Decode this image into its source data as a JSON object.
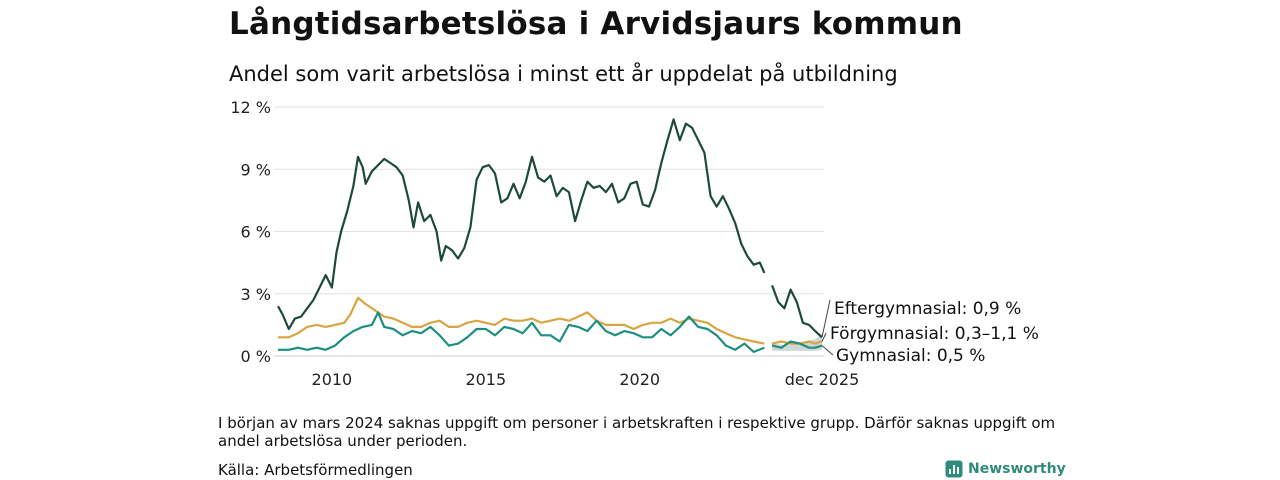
{
  "chart_data": {
    "type": "line",
    "title": "Långtidsarbetslösa i Arvidsjaurs kommun",
    "subtitle": "Andel som varit arbetslösa i minst ett år uppdelat på utbildning",
    "x_unit": "year",
    "xlim": [
      2008.25,
      2025.92
    ],
    "ylim": [
      0,
      12
    ],
    "y_ticks": [
      {
        "value": 0,
        "label": "0 %"
      },
      {
        "value": 3,
        "label": "3 %"
      },
      {
        "value": 6,
        "label": "6 %"
      },
      {
        "value": 9,
        "label": "9 %"
      },
      {
        "value": 12,
        "label": "12 %"
      }
    ],
    "x_ticks": [
      {
        "value": 2010,
        "label": "2010"
      },
      {
        "value": 2015,
        "label": "2015"
      },
      {
        "value": 2020,
        "label": "2020"
      },
      {
        "value": 2025.92,
        "label": "dec 2025"
      }
    ],
    "grid": "horizontal",
    "gap": [
      2024.17,
      2024.25
    ],
    "series": [
      {
        "name": "Eftergymnasial",
        "color": "#1e4a3e",
        "end_label": "Eftergymnasial: 0,9 %",
        "points": [
          [
            2008.25,
            2.4
          ],
          [
            2008.4,
            2.0
          ],
          [
            2008.6,
            1.3
          ],
          [
            2008.8,
            1.8
          ],
          [
            2009.0,
            1.9
          ],
          [
            2009.2,
            2.3
          ],
          [
            2009.4,
            2.7
          ],
          [
            2009.6,
            3.3
          ],
          [
            2009.8,
            3.9
          ],
          [
            2010.0,
            3.3
          ],
          [
            2010.15,
            5.0
          ],
          [
            2010.3,
            6.0
          ],
          [
            2010.5,
            7.0
          ],
          [
            2010.7,
            8.2
          ],
          [
            2010.85,
            9.6
          ],
          [
            2011.0,
            9.1
          ],
          [
            2011.1,
            8.3
          ],
          [
            2011.3,
            8.9
          ],
          [
            2011.5,
            9.2
          ],
          [
            2011.7,
            9.5
          ],
          [
            2011.9,
            9.3
          ],
          [
            2012.1,
            9.1
          ],
          [
            2012.3,
            8.7
          ],
          [
            2012.5,
            7.5
          ],
          [
            2012.65,
            6.2
          ],
          [
            2012.8,
            7.4
          ],
          [
            2013.0,
            6.5
          ],
          [
            2013.2,
            6.8
          ],
          [
            2013.4,
            6.0
          ],
          [
            2013.55,
            4.6
          ],
          [
            2013.7,
            5.3
          ],
          [
            2013.9,
            5.1
          ],
          [
            2014.1,
            4.7
          ],
          [
            2014.3,
            5.2
          ],
          [
            2014.5,
            6.2
          ],
          [
            2014.7,
            8.5
          ],
          [
            2014.9,
            9.1
          ],
          [
            2015.1,
            9.2
          ],
          [
            2015.3,
            8.8
          ],
          [
            2015.5,
            7.4
          ],
          [
            2015.7,
            7.6
          ],
          [
            2015.9,
            8.3
          ],
          [
            2016.1,
            7.6
          ],
          [
            2016.3,
            8.4
          ],
          [
            2016.5,
            9.6
          ],
          [
            2016.7,
            8.6
          ],
          [
            2016.9,
            8.4
          ],
          [
            2017.1,
            8.7
          ],
          [
            2017.3,
            7.7
          ],
          [
            2017.5,
            8.1
          ],
          [
            2017.7,
            7.9
          ],
          [
            2017.9,
            6.5
          ],
          [
            2018.1,
            7.5
          ],
          [
            2018.3,
            8.4
          ],
          [
            2018.5,
            8.1
          ],
          [
            2018.7,
            8.2
          ],
          [
            2018.9,
            7.9
          ],
          [
            2019.1,
            8.3
          ],
          [
            2019.3,
            7.4
          ],
          [
            2019.5,
            7.6
          ],
          [
            2019.7,
            8.3
          ],
          [
            2019.9,
            8.4
          ],
          [
            2020.1,
            7.3
          ],
          [
            2020.3,
            7.2
          ],
          [
            2020.5,
            8.0
          ],
          [
            2020.7,
            9.3
          ],
          [
            2020.9,
            10.4
          ],
          [
            2021.1,
            11.4
          ],
          [
            2021.3,
            10.4
          ],
          [
            2021.5,
            11.2
          ],
          [
            2021.7,
            11.0
          ],
          [
            2021.9,
            10.4
          ],
          [
            2022.1,
            9.8
          ],
          [
            2022.3,
            7.7
          ],
          [
            2022.5,
            7.2
          ],
          [
            2022.7,
            7.7
          ],
          [
            2022.9,
            7.1
          ],
          [
            2023.1,
            6.4
          ],
          [
            2023.3,
            5.4
          ],
          [
            2023.5,
            4.8
          ],
          [
            2023.7,
            4.4
          ],
          [
            2023.9,
            4.5
          ],
          [
            2024.05,
            4.0
          ],
          [
            2024.3,
            3.4
          ],
          [
            2024.5,
            2.6
          ],
          [
            2024.7,
            2.3
          ],
          [
            2024.9,
            3.2
          ],
          [
            2025.1,
            2.6
          ],
          [
            2025.3,
            1.6
          ],
          [
            2025.5,
            1.5
          ],
          [
            2025.7,
            1.2
          ],
          [
            2025.92,
            0.9
          ]
        ]
      },
      {
        "name": "Förgymnasial",
        "color": "#d9a441",
        "end_label": "Förgymnasial: 0,3–1,1 %",
        "points": [
          [
            2008.25,
            0.9
          ],
          [
            2008.6,
            0.9
          ],
          [
            2008.9,
            1.1
          ],
          [
            2009.2,
            1.4
          ],
          [
            2009.5,
            1.5
          ],
          [
            2009.8,
            1.4
          ],
          [
            2010.1,
            1.5
          ],
          [
            2010.4,
            1.6
          ],
          [
            2010.6,
            2.0
          ],
          [
            2010.85,
            2.8
          ],
          [
            2011.1,
            2.5
          ],
          [
            2011.4,
            2.2
          ],
          [
            2011.7,
            1.9
          ],
          [
            2012.0,
            1.8
          ],
          [
            2012.3,
            1.6
          ],
          [
            2012.6,
            1.4
          ],
          [
            2012.9,
            1.4
          ],
          [
            2013.2,
            1.6
          ],
          [
            2013.5,
            1.7
          ],
          [
            2013.8,
            1.4
          ],
          [
            2014.1,
            1.4
          ],
          [
            2014.4,
            1.6
          ],
          [
            2014.7,
            1.7
          ],
          [
            2015.0,
            1.6
          ],
          [
            2015.3,
            1.5
          ],
          [
            2015.6,
            1.8
          ],
          [
            2015.9,
            1.7
          ],
          [
            2016.2,
            1.7
          ],
          [
            2016.5,
            1.8
          ],
          [
            2016.8,
            1.6
          ],
          [
            2017.1,
            1.7
          ],
          [
            2017.4,
            1.8
          ],
          [
            2017.7,
            1.7
          ],
          [
            2018.0,
            1.9
          ],
          [
            2018.3,
            2.1
          ],
          [
            2018.6,
            1.7
          ],
          [
            2018.9,
            1.5
          ],
          [
            2019.2,
            1.5
          ],
          [
            2019.5,
            1.5
          ],
          [
            2019.8,
            1.3
          ],
          [
            2020.1,
            1.5
          ],
          [
            2020.4,
            1.6
          ],
          [
            2020.7,
            1.6
          ],
          [
            2021.0,
            1.8
          ],
          [
            2021.3,
            1.6
          ],
          [
            2021.6,
            1.8
          ],
          [
            2021.9,
            1.7
          ],
          [
            2022.2,
            1.6
          ],
          [
            2022.5,
            1.3
          ],
          [
            2022.8,
            1.1
          ],
          [
            2023.1,
            0.9
          ],
          [
            2023.4,
            0.8
          ],
          [
            2023.7,
            0.7
          ],
          [
            2024.05,
            0.6
          ],
          [
            2024.3,
            0.6
          ],
          [
            2024.6,
            0.7
          ],
          [
            2024.9,
            0.6
          ],
          [
            2025.2,
            0.6
          ],
          [
            2025.5,
            0.7
          ],
          [
            2025.7,
            0.6
          ],
          [
            2025.92,
            0.7
          ]
        ]
      },
      {
        "name": "Gymnasial",
        "color": "#1c8f80",
        "end_label": "Gymnasial: 0,5 %",
        "points": [
          [
            2008.25,
            0.3
          ],
          [
            2008.6,
            0.3
          ],
          [
            2008.9,
            0.4
          ],
          [
            2009.2,
            0.3
          ],
          [
            2009.5,
            0.4
          ],
          [
            2009.8,
            0.3
          ],
          [
            2010.1,
            0.5
          ],
          [
            2010.4,
            0.9
          ],
          [
            2010.7,
            1.2
          ],
          [
            2011.0,
            1.4
          ],
          [
            2011.3,
            1.5
          ],
          [
            2011.5,
            2.1
          ],
          [
            2011.7,
            1.4
          ],
          [
            2012.0,
            1.3
          ],
          [
            2012.3,
            1.0
          ],
          [
            2012.6,
            1.2
          ],
          [
            2012.9,
            1.1
          ],
          [
            2013.2,
            1.4
          ],
          [
            2013.5,
            1.0
          ],
          [
            2013.8,
            0.5
          ],
          [
            2014.1,
            0.6
          ],
          [
            2014.4,
            0.9
          ],
          [
            2014.7,
            1.3
          ],
          [
            2015.0,
            1.3
          ],
          [
            2015.3,
            1.0
          ],
          [
            2015.6,
            1.4
          ],
          [
            2015.9,
            1.3
          ],
          [
            2016.2,
            1.1
          ],
          [
            2016.5,
            1.6
          ],
          [
            2016.8,
            1.0
          ],
          [
            2017.1,
            1.0
          ],
          [
            2017.4,
            0.7
          ],
          [
            2017.7,
            1.5
          ],
          [
            2018.0,
            1.4
          ],
          [
            2018.3,
            1.2
          ],
          [
            2018.6,
            1.7
          ],
          [
            2018.9,
            1.2
          ],
          [
            2019.2,
            1.0
          ],
          [
            2019.5,
            1.2
          ],
          [
            2019.8,
            1.1
          ],
          [
            2020.1,
            0.9
          ],
          [
            2020.4,
            0.9
          ],
          [
            2020.7,
            1.3
          ],
          [
            2021.0,
            1.0
          ],
          [
            2021.3,
            1.4
          ],
          [
            2021.6,
            1.9
          ],
          [
            2021.9,
            1.4
          ],
          [
            2022.2,
            1.3
          ],
          [
            2022.5,
            1.0
          ],
          [
            2022.8,
            0.5
          ],
          [
            2023.1,
            0.3
          ],
          [
            2023.4,
            0.6
          ],
          [
            2023.7,
            0.2
          ],
          [
            2024.05,
            0.4
          ],
          [
            2024.3,
            0.5
          ],
          [
            2024.6,
            0.4
          ],
          [
            2024.9,
            0.7
          ],
          [
            2025.2,
            0.6
          ],
          [
            2025.5,
            0.4
          ],
          [
            2025.7,
            0.4
          ],
          [
            2025.92,
            0.5
          ]
        ]
      }
    ],
    "range_band": {
      "name": "Förgymnasial range",
      "color": "#9aa3a8",
      "low": [
        [
          2024.3,
          0.25
        ],
        [
          2024.6,
          0.25
        ],
        [
          2024.9,
          0.25
        ],
        [
          2025.2,
          0.25
        ],
        [
          2025.5,
          0.25
        ],
        [
          2025.7,
          0.25
        ],
        [
          2025.92,
          0.3
        ]
      ],
      "high": [
        [
          2024.3,
          0.6
        ],
        [
          2024.6,
          0.55
        ],
        [
          2024.9,
          0.55
        ],
        [
          2025.2,
          0.6
        ],
        [
          2025.5,
          0.75
        ],
        [
          2025.7,
          0.8
        ],
        [
          2025.92,
          1.1
        ]
      ]
    }
  },
  "note": "I början av mars 2024 saknas uppgift om personer i arbetskraften i respektive grupp. Därför saknas uppgift om andel arbetslösa under perioden.",
  "source": "Källa: Arbetsförmedlingen",
  "brand": {
    "name": "Newsworthy",
    "icon": "bar-chart-logo-icon",
    "color": "#2f8c7c"
  }
}
